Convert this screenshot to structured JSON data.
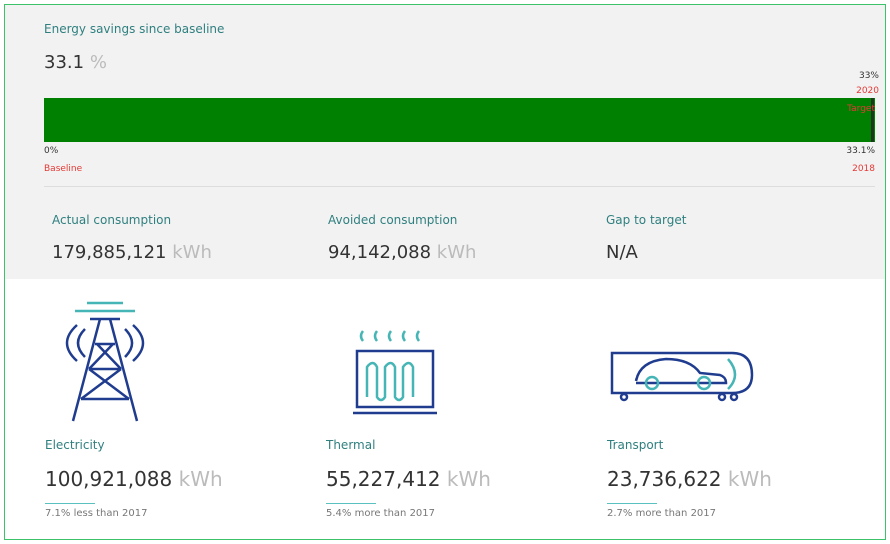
{
  "header": {
    "title": "Energy savings since baseline",
    "value": "33.1",
    "unit": "%"
  },
  "progress": {
    "target_label": "33%",
    "target_year": "2020",
    "target": "Target",
    "start_label": "0%",
    "start_name": "Baseline",
    "end_label": "33.1%",
    "end_year": "2018"
  },
  "summary": [
    {
      "label": "Actual consumption",
      "value": "179,885,121",
      "unit": "kWh"
    },
    {
      "label": "Avoided consumption",
      "value": "94,142,088",
      "unit": "kWh"
    },
    {
      "label": "Gap to target",
      "value": "N/A"
    }
  ],
  "categories": [
    {
      "label": "Electricity",
      "value": "100,921,088",
      "unit": "kWh",
      "change": "7.1% less than 2017"
    },
    {
      "label": "Thermal",
      "value": "55,227,412",
      "unit": "kWh",
      "change": "5.4% more than 2017"
    },
    {
      "label": "Transport",
      "value": "23,736,622",
      "unit": "kWh",
      "change": "2.7% more than 2017"
    }
  ]
}
